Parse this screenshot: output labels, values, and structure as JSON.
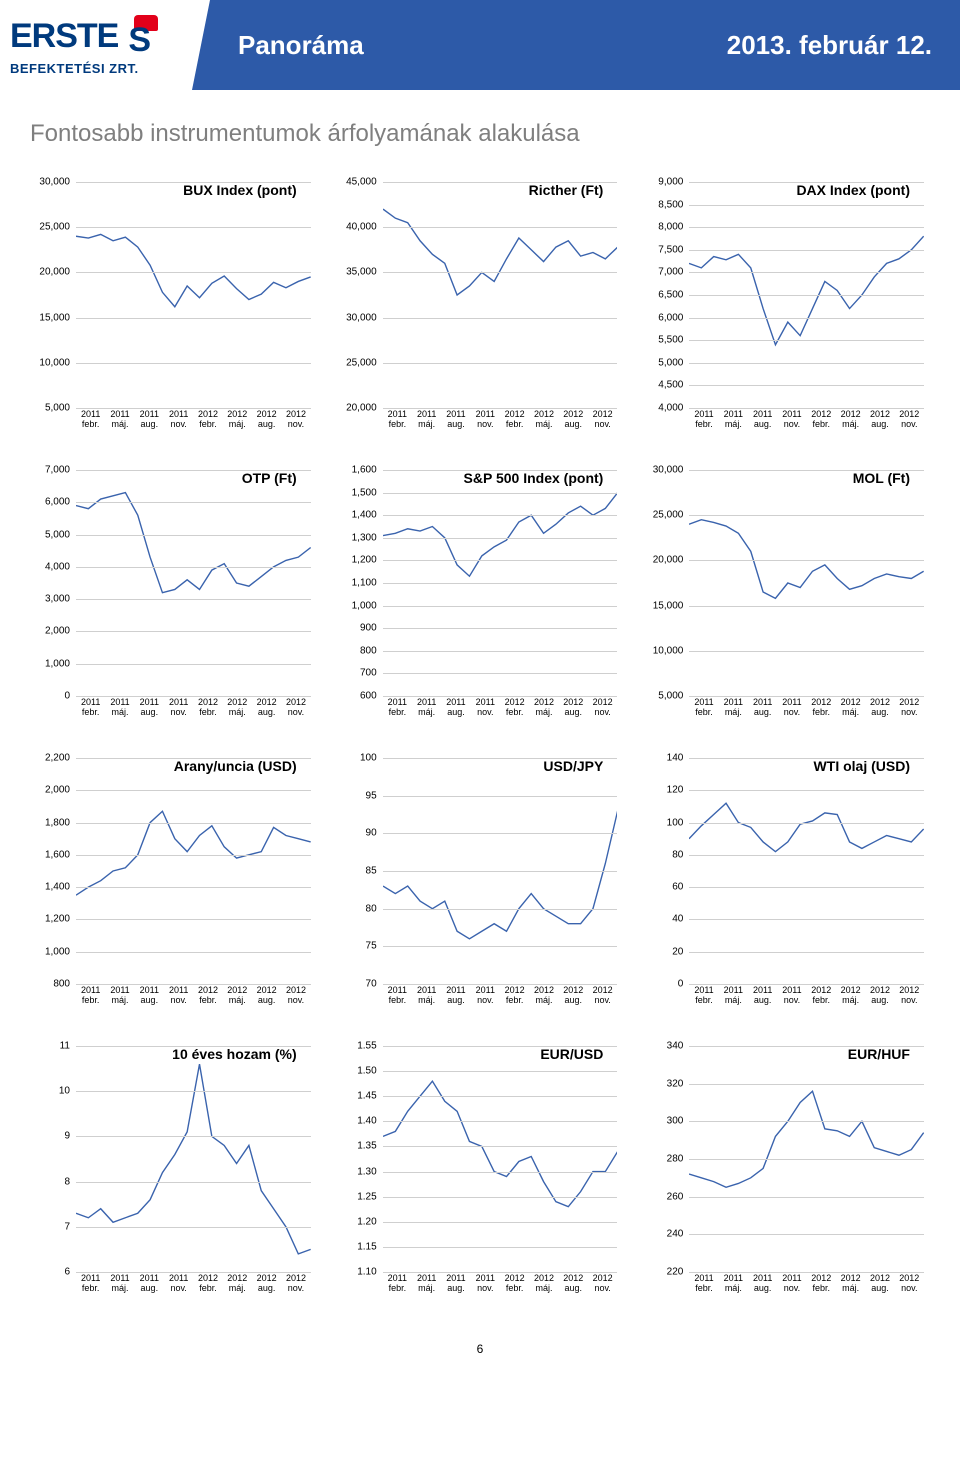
{
  "colors": {
    "brand_blue": "#003a7d",
    "brand_red": "#e2001a",
    "bar_blue": "#2d5aa8",
    "grid": "#cfcfcf",
    "line": "#3a63ad",
    "title_grey": "#7f7f7f"
  },
  "header": {
    "logo_main": "ERSTE",
    "logo_sub": "BEFEKTETÉSI ZRT.",
    "title": "Panoráma",
    "date": "2013. február 12."
  },
  "section_title": "Fontosabb instrumentumok árfolyamának alakulása",
  "x_labels": [
    "2011\nfebr.",
    "2011\nmáj.",
    "2011\naug.",
    "2011\nnov.",
    "2012\nfebr.",
    "2012\nmáj.",
    "2012\naug.",
    "2012\nnov."
  ],
  "page_number": "6",
  "charts": [
    {
      "id": "bux",
      "title": "BUX Index (pont)",
      "ymin": 5000,
      "ymax": 30000,
      "ystep": 5000,
      "fmt": "comma",
      "series": [
        24000,
        23800,
        24200,
        23500,
        23900,
        22800,
        20800,
        17800,
        16200,
        18500,
        17200,
        18800,
        19600,
        18200,
        17000,
        17600,
        18900,
        18300,
        19000,
        19500
      ]
    },
    {
      "id": "richter",
      "title": "Ricther (Ft)",
      "ymin": 20000,
      "ymax": 45000,
      "ystep": 5000,
      "fmt": "comma",
      "series": [
        42000,
        41000,
        40500,
        38500,
        37000,
        36000,
        32500,
        33500,
        35000,
        34000,
        36500,
        38800,
        37500,
        36200,
        37800,
        38500,
        36800,
        37200,
        36500,
        37800
      ]
    },
    {
      "id": "dax",
      "title": "DAX Index (pont)",
      "ymin": 4000,
      "ymax": 9000,
      "ystep": 500,
      "fmt": "comma",
      "series": [
        7200,
        7100,
        7350,
        7280,
        7400,
        7100,
        6200,
        5400,
        5900,
        5600,
        6200,
        6800,
        6600,
        6200,
        6500,
        6900,
        7200,
        7300,
        7500,
        7800
      ]
    },
    {
      "id": "otp",
      "title": "OTP (Ft)",
      "ymin": 0,
      "ymax": 7000,
      "ystep": 1000,
      "fmt": "comma",
      "series": [
        5900,
        5800,
        6100,
        6200,
        6300,
        5600,
        4300,
        3200,
        3300,
        3600,
        3300,
        3900,
        4100,
        3500,
        3400,
        3700,
        4000,
        4200,
        4300,
        4600
      ]
    },
    {
      "id": "sp500",
      "title": "S&P 500 Index (pont)",
      "ymin": 600,
      "ymax": 1600,
      "ystep": 100,
      "fmt": "comma",
      "series": [
        1310,
        1320,
        1340,
        1330,
        1350,
        1300,
        1180,
        1130,
        1220,
        1260,
        1290,
        1370,
        1400,
        1320,
        1360,
        1410,
        1440,
        1400,
        1430,
        1500
      ]
    },
    {
      "id": "mol",
      "title": "MOL (Ft)",
      "ymin": 5000,
      "ymax": 30000,
      "ystep": 5000,
      "fmt": "comma",
      "series": [
        24000,
        24500,
        24200,
        23800,
        23000,
        21000,
        16500,
        15800,
        17500,
        17000,
        18800,
        19500,
        18000,
        16800,
        17200,
        18000,
        18500,
        18200,
        18000,
        18800
      ]
    },
    {
      "id": "gold",
      "title": "Arany/uncia (USD)",
      "ymin": 800,
      "ymax": 2200,
      "ystep": 200,
      "fmt": "comma",
      "series": [
        1350,
        1400,
        1440,
        1500,
        1520,
        1600,
        1800,
        1870,
        1700,
        1620,
        1720,
        1780,
        1650,
        1580,
        1600,
        1620,
        1770,
        1720,
        1700,
        1680
      ]
    },
    {
      "id": "usdjpy",
      "title": "USD/JPY",
      "ymin": 70,
      "ymax": 100,
      "ystep": 5,
      "fmt": "plain",
      "series": [
        83,
        82,
        83,
        81,
        80,
        81,
        77,
        76,
        77,
        78,
        77,
        80,
        82,
        80,
        79,
        78,
        78,
        80,
        86,
        93
      ]
    },
    {
      "id": "wti",
      "title": "WTI olaj (USD)",
      "ymin": 0,
      "ymax": 140,
      "ystep": 20,
      "fmt": "plain",
      "series": [
        90,
        98,
        105,
        112,
        100,
        97,
        88,
        82,
        88,
        99,
        101,
        106,
        105,
        88,
        84,
        88,
        92,
        90,
        88,
        96
      ]
    },
    {
      "id": "yield",
      "title": "10 éves hozam (%)",
      "ymin": 6,
      "ymax": 11,
      "ystep": 1,
      "fmt": "plain",
      "y_repeat": true,
      "series": [
        7.3,
        7.2,
        7.4,
        7.1,
        7.2,
        7.3,
        7.6,
        8.2,
        8.6,
        9.1,
        10.6,
        9.0,
        8.8,
        8.4,
        8.8,
        7.8,
        7.4,
        7.0,
        6.4,
        6.5
      ]
    },
    {
      "id": "eurusd",
      "title": "EUR/USD",
      "ymin": 1.1,
      "ymax": 1.55,
      "ystep": 0.05,
      "fmt": "dec2",
      "series": [
        1.37,
        1.38,
        1.42,
        1.45,
        1.48,
        1.44,
        1.42,
        1.36,
        1.35,
        1.3,
        1.29,
        1.32,
        1.33,
        1.28,
        1.24,
        1.23,
        1.26,
        1.3,
        1.3,
        1.34
      ]
    },
    {
      "id": "eurhuf",
      "title": "EUR/HUF",
      "ymin": 220,
      "ymax": 340,
      "ystep": 20,
      "fmt": "plain",
      "series": [
        272,
        270,
        268,
        265,
        267,
        270,
        275,
        292,
        300,
        310,
        316,
        296,
        295,
        292,
        300,
        286,
        284,
        282,
        285,
        294
      ]
    }
  ]
}
